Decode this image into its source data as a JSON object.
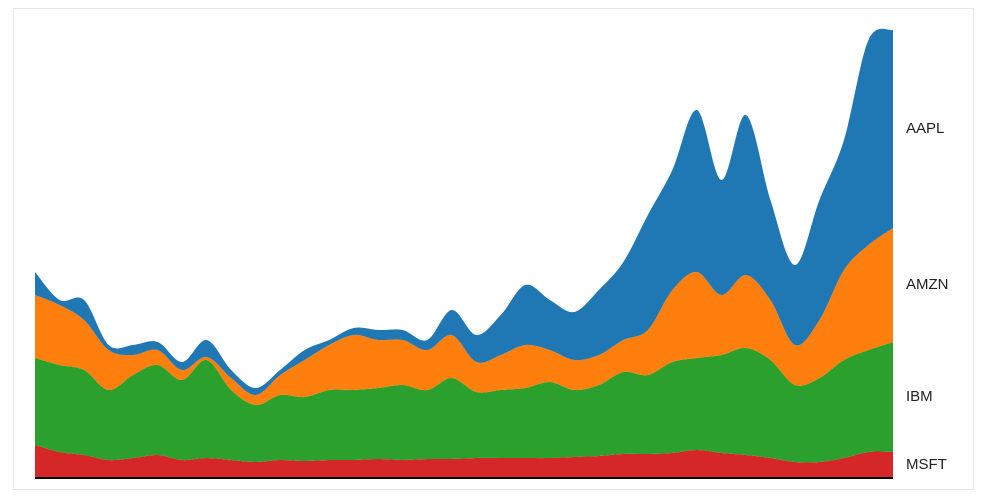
{
  "chart_data": {
    "type": "stacked-area",
    "x": [
      0,
      1,
      2,
      3,
      4,
      5,
      6,
      7,
      8,
      9,
      10,
      11,
      12,
      13,
      14,
      15,
      16,
      17,
      18,
      19,
      20,
      21,
      22,
      23,
      24,
      25,
      26,
      27,
      28,
      29,
      30,
      31,
      32,
      33,
      34,
      35
    ],
    "xlim": [
      0,
      35
    ],
    "ylim": [
      0,
      450
    ],
    "series": [
      {
        "name": "MSFT",
        "color": "#d62728",
        "values": [
          33,
          26,
          23,
          18,
          20,
          23,
          18,
          20,
          18,
          16,
          18,
          17,
          18,
          18,
          19,
          18,
          19,
          19,
          20,
          20,
          20,
          20,
          21,
          22,
          24,
          24,
          25,
          28,
          25,
          23,
          20,
          16,
          16,
          20,
          26,
          26
        ]
      },
      {
        "name": "IBM",
        "color": "#2ca02c",
        "values": [
          87,
          87,
          85,
          70,
          83,
          90,
          80,
          98,
          70,
          57,
          65,
          64,
          70,
          70,
          71,
          75,
          69,
          81,
          66,
          68,
          70,
          76,
          67,
          71,
          82,
          79,
          91,
          92,
          98,
          107,
          98,
          77,
          84,
          98,
          102,
          110
        ]
      },
      {
        "name": "AMZN",
        "color": "#ff7f0e",
        "values": [
          63,
          60,
          50,
          40,
          20,
          15,
          10,
          3,
          12,
          10,
          20,
          37,
          45,
          55,
          48,
          45,
          40,
          43,
          30,
          35,
          43,
          32,
          30,
          30,
          32,
          45,
          72,
          86,
          60,
          73,
          60,
          40,
          58,
          90,
          105,
          114
        ]
      },
      {
        "name": "AAPL",
        "color": "#1f77b4",
        "values": [
          23,
          5,
          20,
          5,
          10,
          8,
          8,
          17,
          8,
          7,
          5,
          10,
          5,
          7,
          10,
          10,
          10,
          25,
          27,
          40,
          60,
          50,
          48,
          65,
          78,
          115,
          120,
          162,
          115,
          160,
          100,
          80,
          120,
          130,
          205,
          198
        ]
      }
    ]
  }
}
